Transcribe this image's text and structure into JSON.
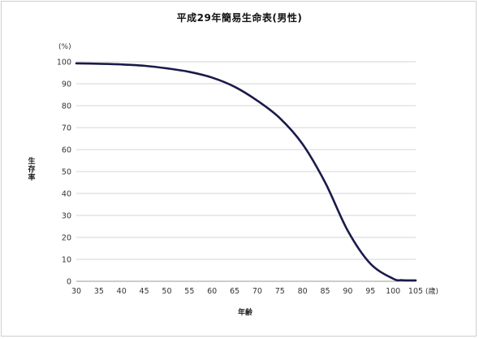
{
  "chart_data": {
    "type": "line",
    "title": "平成29年簡易生命表(男性)",
    "xlabel": "年齢",
    "ylabel": "生存率",
    "x_unit": "(歳)",
    "y_unit": "(%)",
    "xlim": [
      30,
      105
    ],
    "ylim": [
      0,
      100
    ],
    "x_ticks": [
      30,
      35,
      40,
      45,
      50,
      55,
      60,
      65,
      70,
      75,
      80,
      85,
      90,
      95,
      100,
      105
    ],
    "y_ticks": [
      0,
      10,
      20,
      30,
      40,
      50,
      60,
      70,
      80,
      90,
      100
    ],
    "grid": "horizontal",
    "legend": "none",
    "line_color": "#1a1a4a",
    "series": [
      {
        "x": [
          30,
          35,
          40,
          45,
          50,
          55,
          60,
          65,
          70,
          75,
          80,
          85,
          90,
          95,
          100,
          102,
          105
        ],
        "values": [
          99.3,
          99.1,
          98.8,
          98.2,
          97.0,
          95.4,
          92.8,
          88.6,
          82.3,
          74.3,
          62.5,
          45.0,
          23.0,
          8.0,
          1.2,
          0.5,
          0.4
        ]
      }
    ]
  }
}
